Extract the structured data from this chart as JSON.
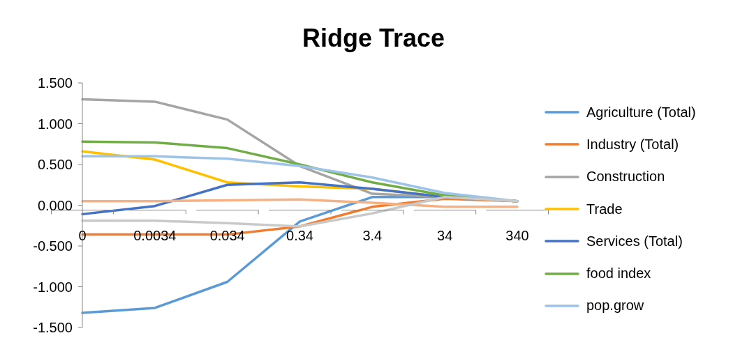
{
  "chart_data": {
    "type": "line",
    "title": "Ridge Trace",
    "categories": [
      "0",
      "0.0034",
      "0.034",
      "0.34",
      "3.4",
      "34",
      "340"
    ],
    "series": [
      {
        "name": "Agriculture (Total)",
        "color": "#5b9bd5",
        "values": [
          -1.32,
          -1.26,
          -0.94,
          -0.2,
          0.1,
          0.1,
          0.05
        ]
      },
      {
        "name": "Industry (Total)",
        "color": "#ed7d31",
        "values": [
          -0.36,
          -0.36,
          -0.36,
          -0.26,
          -0.02,
          0.08,
          0.05
        ]
      },
      {
        "name": "Construction",
        "color": "#a5a5a5",
        "values": [
          1.3,
          1.27,
          1.05,
          0.48,
          0.14,
          0.1,
          0.05
        ]
      },
      {
        "name": "Trade",
        "color": "#ffc000",
        "values": [
          0.66,
          0.56,
          0.28,
          0.23,
          0.2,
          0.1,
          0.05
        ]
      },
      {
        "name": "Services (Total)",
        "color": "#4472c4",
        "values": [
          -0.11,
          -0.01,
          0.25,
          0.28,
          0.2,
          0.1,
          0.05
        ]
      },
      {
        "name": "food index",
        "color": "#70ad47",
        "values": [
          0.78,
          0.77,
          0.7,
          0.5,
          0.28,
          0.12,
          0.05
        ]
      },
      {
        "name": "pop.grow",
        "color": "#9dc3e6",
        "values": [
          0.6,
          0.6,
          0.57,
          0.48,
          0.34,
          0.15,
          0.05
        ]
      },
      {
        "color": "#f4b183",
        "values": [
          0.05,
          0.05,
          0.06,
          0.07,
          0.03,
          -0.02,
          -0.02
        ]
      },
      {
        "color": "#c9c9c9",
        "values": [
          -0.19,
          -0.19,
          -0.22,
          -0.26,
          -0.1,
          0.1,
          0.05
        ]
      }
    ],
    "ylim": [
      -1.5,
      1.5
    ],
    "yticks": [
      {
        "value": -1.5,
        "label": "-1.500"
      },
      {
        "value": -1,
        "label": "-1.000"
      },
      {
        "value": -0.5,
        "label": "-0.500"
      },
      {
        "value": 0,
        "label": "0.000"
      },
      {
        "value": 0.5,
        "label": "0.500"
      },
      {
        "value": 1,
        "label": "1.000"
      },
      {
        "value": 1.5,
        "label": "1.500"
      }
    ],
    "legend": "right",
    "grid": false,
    "marker": "none",
    "line_style": "solid"
  }
}
